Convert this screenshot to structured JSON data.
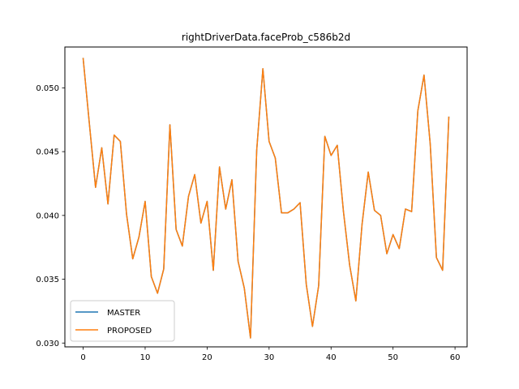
{
  "chart_data": {
    "type": "line",
    "title": "rightDriverData.faceProb_c586b2d",
    "xlabel": "",
    "ylabel": "",
    "xlim": [
      -2.95,
      61.95
    ],
    "ylim": [
      0.0297,
      0.0532
    ],
    "x_ticks": [
      0,
      10,
      20,
      30,
      40,
      50,
      60
    ],
    "x_tick_labels": [
      "0",
      "10",
      "20",
      "30",
      "40",
      "50",
      "60"
    ],
    "y_ticks": [
      0.03,
      0.035,
      0.04,
      0.045,
      0.05
    ],
    "y_tick_labels": [
      "0.030",
      "0.035",
      "0.040",
      "0.045",
      "0.050"
    ],
    "grid": false,
    "legend_position": "lower left",
    "x": [
      0,
      1,
      2,
      3,
      4,
      5,
      6,
      7,
      8,
      9,
      10,
      11,
      12,
      13,
      14,
      15,
      16,
      17,
      18,
      19,
      20,
      21,
      22,
      23,
      24,
      25,
      26,
      27,
      28,
      29,
      30,
      31,
      32,
      33,
      34,
      35,
      36,
      37,
      38,
      39,
      40,
      41,
      42,
      43,
      44,
      45,
      46,
      47,
      48,
      49,
      50,
      51,
      52,
      53,
      54,
      55,
      56,
      57,
      58,
      59
    ],
    "series": [
      {
        "name": "MASTER",
        "color": "#1f77b4",
        "values": [
          0.0523,
          0.0472,
          0.0422,
          0.0453,
          0.0409,
          0.0463,
          0.0458,
          0.0401,
          0.0366,
          0.0383,
          0.0411,
          0.0352,
          0.0339,
          0.0358,
          0.0471,
          0.0389,
          0.0376,
          0.0415,
          0.0432,
          0.0394,
          0.0411,
          0.0357,
          0.0438,
          0.0405,
          0.0428,
          0.0364,
          0.0343,
          0.0304,
          0.0451,
          0.0515,
          0.0458,
          0.0445,
          0.0402,
          0.0402,
          0.0405,
          0.041,
          0.0346,
          0.0313,
          0.0345,
          0.0462,
          0.0447,
          0.0455,
          0.0403,
          0.0361,
          0.0333,
          0.0393,
          0.0434,
          0.0404,
          0.04,
          0.037,
          0.0385,
          0.0374,
          0.0405,
          0.0403,
          0.0482,
          0.051,
          0.0456,
          0.0367,
          0.0357,
          0.0477
        ]
      },
      {
        "name": "PROPOSED",
        "color": "#ff7f0e",
        "values": [
          0.0523,
          0.0472,
          0.0422,
          0.0453,
          0.0409,
          0.0463,
          0.0458,
          0.0401,
          0.0366,
          0.0383,
          0.0411,
          0.0352,
          0.0339,
          0.0358,
          0.0471,
          0.0389,
          0.0376,
          0.0415,
          0.0432,
          0.0394,
          0.0411,
          0.0357,
          0.0438,
          0.0405,
          0.0428,
          0.0364,
          0.0343,
          0.0304,
          0.0451,
          0.0515,
          0.0458,
          0.0445,
          0.0402,
          0.0402,
          0.0405,
          0.041,
          0.0346,
          0.0313,
          0.0345,
          0.0462,
          0.0447,
          0.0455,
          0.0403,
          0.0361,
          0.0333,
          0.0393,
          0.0434,
          0.0404,
          0.04,
          0.037,
          0.0385,
          0.0374,
          0.0405,
          0.0403,
          0.0482,
          0.051,
          0.0456,
          0.0367,
          0.0357,
          0.0477
        ]
      }
    ]
  }
}
